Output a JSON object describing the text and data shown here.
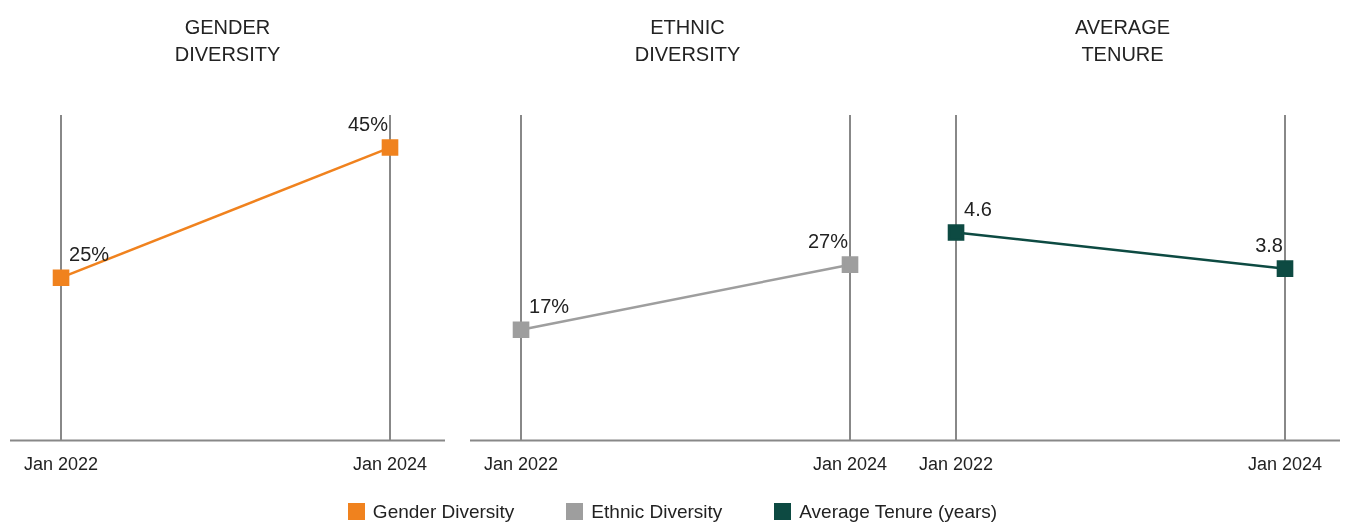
{
  "chart_data": [
    {
      "type": "line",
      "title": "GENDER DIVERSITY",
      "categories": [
        "Jan 2022",
        "Jan 2024"
      ],
      "ylim": [
        0,
        50
      ],
      "grid": "x",
      "legend": "bottom",
      "marker": "square",
      "tick_labels": "x",
      "series": [
        {
          "name": "Gender Diversity",
          "color": "#f0821e",
          "values": [
            25,
            45
          ],
          "value_labels": [
            "25%",
            "45%"
          ]
        }
      ]
    },
    {
      "type": "line",
      "title": "ETHNIC DIVERSITY",
      "categories": [
        "Jan 2022",
        "Jan 2024"
      ],
      "ylim": [
        0,
        50
      ],
      "grid": "x",
      "legend": "bottom",
      "marker": "square",
      "tick_labels": "x",
      "series": [
        {
          "name": "Ethnic Diversity",
          "color": "#9e9e9e",
          "values": [
            17,
            27
          ],
          "value_labels": [
            "17%",
            "27%"
          ]
        }
      ]
    },
    {
      "type": "line",
      "title": "AVERAGE TENURE",
      "categories": [
        "Jan 2022",
        "Jan 2024"
      ],
      "ylim": [
        0,
        7.2
      ],
      "grid": "x",
      "legend": "bottom",
      "marker": "square",
      "tick_labels": "x",
      "series": [
        {
          "name": "Average Tenure (years)",
          "color": "#0d4a42",
          "values": [
            4.6,
            3.8
          ],
          "value_labels": [
            "4.6",
            "3.8"
          ]
        }
      ]
    }
  ]
}
